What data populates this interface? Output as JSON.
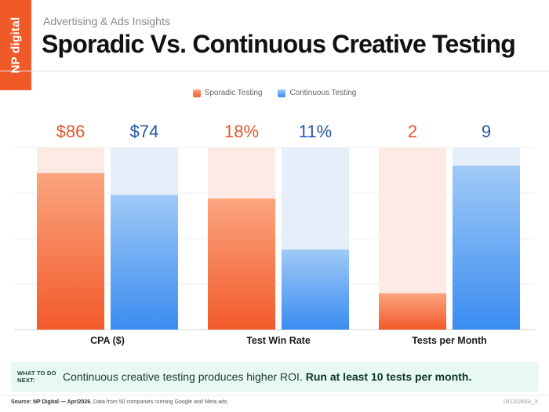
{
  "header": {
    "brand": "NP digital",
    "eyebrow": "Advertising & Ads Insights",
    "title": "Sporadic Vs. Continuous Creative Testing"
  },
  "legend": [
    {
      "label": "Sporadic Testing",
      "color": "#f26a3b"
    },
    {
      "label": "Continuous Testing",
      "color": "#3f8ff0"
    }
  ],
  "chart_data": {
    "type": "bar",
    "categories": [
      "CPA ($)",
      "Test Win Rate",
      "Tests per Month"
    ],
    "series": [
      {
        "name": "Sporadic Testing",
        "value_labels": [
          "$86",
          "18%",
          "2"
        ],
        "values": [
          86,
          18,
          2
        ]
      },
      {
        "name": "Continuous Testing",
        "value_labels": [
          "$74",
          "11%",
          "9"
        ],
        "values": [
          74,
          11,
          9
        ]
      }
    ],
    "group_max": [
      100,
      25,
      10
    ],
    "grid": true,
    "legend_position": "top-center",
    "colors": {
      "sporadic_top": "#fba57f",
      "sporadic_bottom": "#f25a2a",
      "sporadic_track": "#fdeae4",
      "continuous_top": "#9fcaf6",
      "continuous_bottom": "#3a8cf1",
      "continuous_track": "#e6eef9",
      "sporadic_label": "#e4572e",
      "continuous_label": "#2457a8"
    }
  },
  "callout": {
    "tag": "WHAT TO DO NEXT:",
    "text": "Continuous creative testing produces higher ROI.",
    "emphasis": "Run at least 10 tests per month."
  },
  "footer": {
    "source_label": "Source: NP Digital — Apr/2026.",
    "source_text": "Data from 50 companies running Google and Meta ads.",
    "doc_id": "04110264A_X"
  }
}
